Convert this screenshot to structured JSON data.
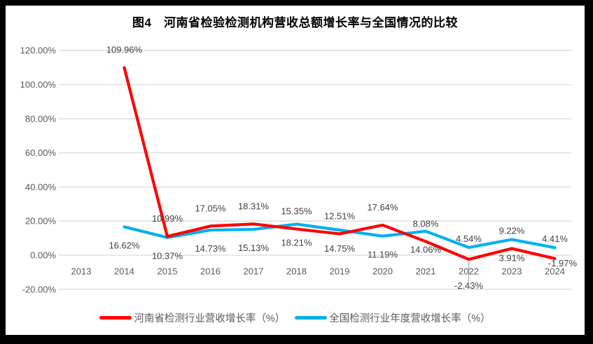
{
  "chart_data": {
    "type": "line",
    "title": "图4　河南省检验检测机构营收总额增长率与全国情况的比较",
    "categories": [
      "2013",
      "2014",
      "2015",
      "2016",
      "2017",
      "2018",
      "2019",
      "2020",
      "2021",
      "2022",
      "2023",
      "2024"
    ],
    "series": [
      {
        "name": "河南省检测行业营收增长率（%）",
        "color": "#FF0000",
        "values": [
          null,
          109.96,
          10.99,
          17.05,
          18.31,
          15.35,
          12.51,
          17.64,
          8.08,
          -2.43,
          3.91,
          -1.97
        ],
        "label_side": [
          null,
          "above",
          "above",
          "above",
          "above",
          "above",
          "above",
          "above",
          "above",
          "below",
          "below",
          "below"
        ]
      },
      {
        "name": "全国检测行业年度营收增长率（%）",
        "color": "#00B0F0",
        "values": [
          null,
          16.62,
          10.37,
          14.73,
          15.13,
          18.21,
          14.75,
          11.19,
          14.06,
          4.54,
          9.22,
          4.41
        ],
        "label_side": [
          null,
          "below",
          "below",
          "below",
          "below",
          "below",
          "below",
          "below",
          "below",
          "above",
          "above",
          "above"
        ]
      }
    ],
    "ylim": [
      -20,
      120
    ],
    "ytick_step": 20,
    "ytick_labels": [
      "120.00%",
      "100.00%",
      "80.00%",
      "60.00%",
      "40.00%",
      "20.00%",
      "0.00%",
      "-20.00%"
    ],
    "label_format": "0.00%",
    "grid": true,
    "legend_position": "bottom"
  },
  "colors": {
    "frame": "#000000",
    "background": "#FFFFFF",
    "gridline": "#D9D9D9",
    "axis_text": "#595959",
    "data_label_text": "#3F3F3F",
    "leader_line": "#A6A6A6",
    "series_red": "#FF0000",
    "series_blue": "#00B0F0"
  }
}
